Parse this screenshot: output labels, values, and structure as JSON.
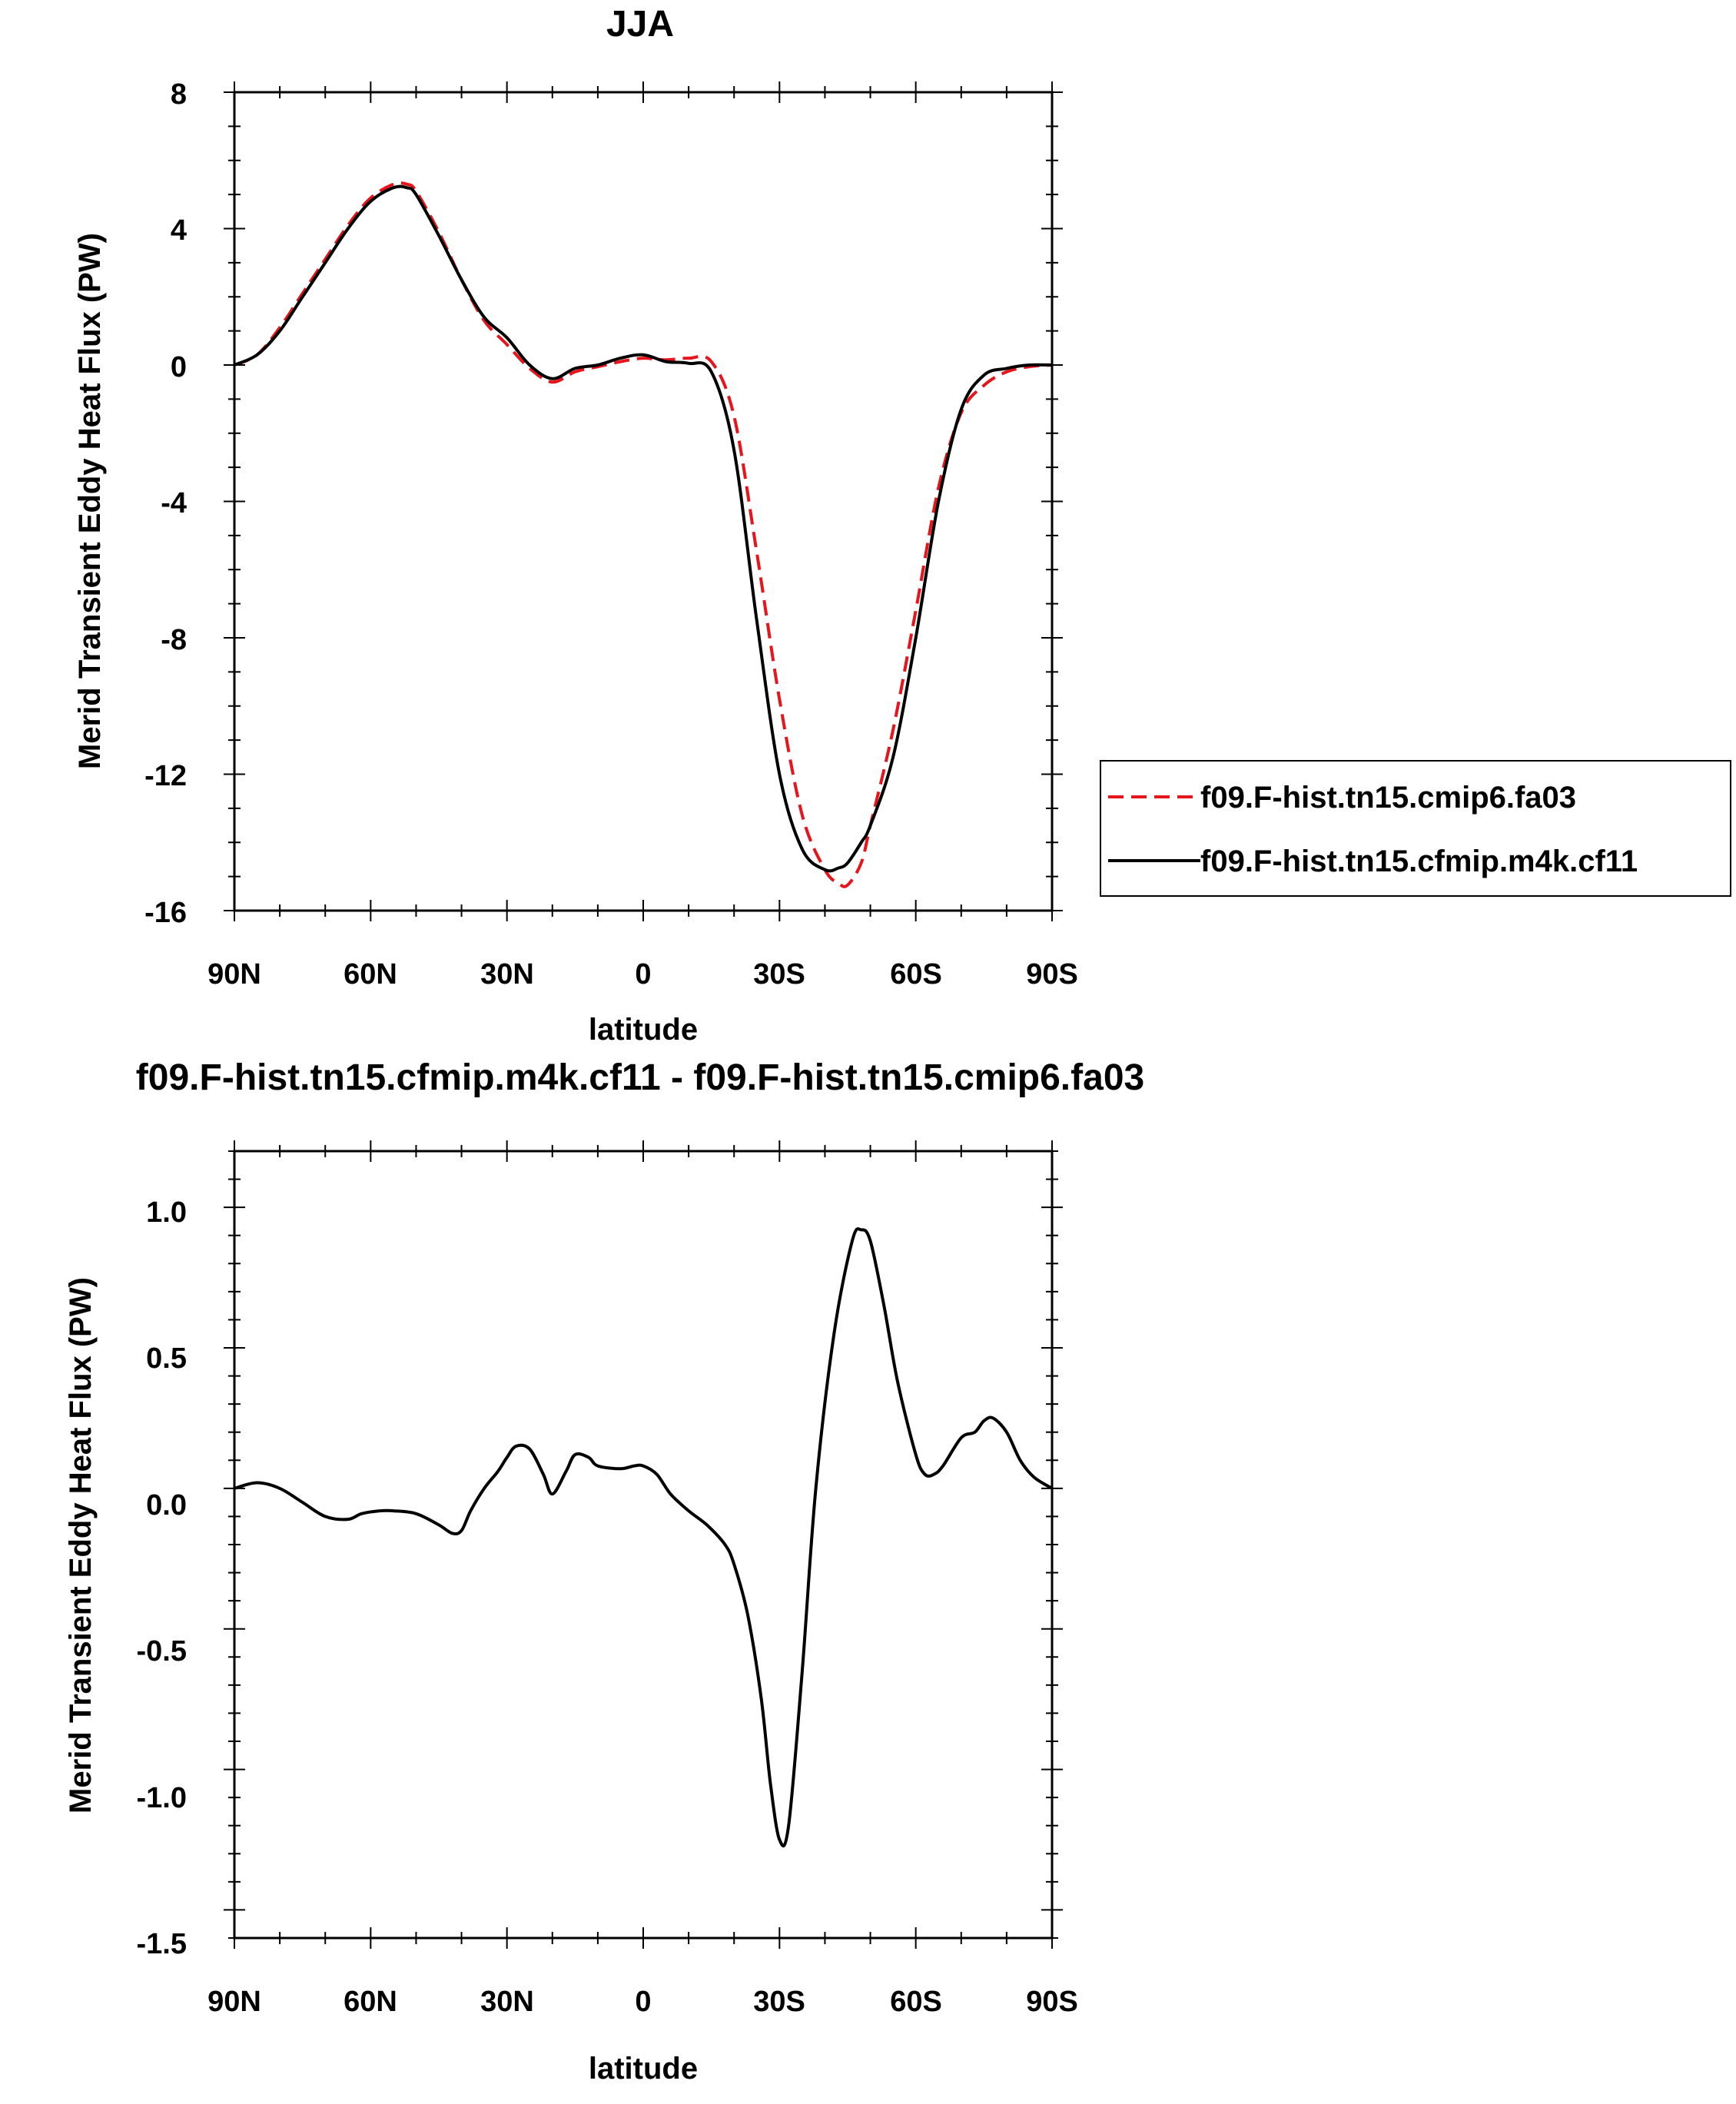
{
  "chart_data": [
    {
      "type": "line",
      "title": "JJA",
      "xlabel": "latitude",
      "ylabel": "Merid Transient Eddy Heat Flux (PW)",
      "xlim": [
        90,
        -90
      ],
      "ylim": [
        -16,
        8
      ],
      "xticks": [
        90,
        60,
        30,
        0,
        -30,
        -60,
        -90
      ],
      "xtick_labels": [
        "90N",
        "60N",
        "30N",
        "0",
        "30S",
        "60S",
        "90S"
      ],
      "yticks": [
        -16,
        -12,
        -8,
        -4,
        0,
        4,
        8
      ],
      "ytick_labels": [
        "-16",
        "-12",
        "-8",
        "-4",
        "0",
        "4",
        "8"
      ],
      "legend": {
        "position": "right"
      },
      "x": [
        90,
        85,
        80,
        75,
        70,
        65,
        60,
        55,
        52,
        50,
        45,
        40,
        35,
        30,
        25,
        20,
        15,
        10,
        5,
        0,
        -5,
        -10,
        -15,
        -20,
        -25,
        -30,
        -35,
        -40,
        -43,
        -45,
        -48,
        -50,
        -55,
        -60,
        -65,
        -70,
        -75,
        -80,
        -85,
        -90
      ],
      "series": [
        {
          "name": "f09.F-hist.tn15.cmip6.fa03",
          "color": "#e8141b",
          "dash": "dashed",
          "values": [
            0.0,
            0.3,
            1.1,
            2.1,
            3.1,
            4.1,
            4.9,
            5.3,
            5.3,
            5.1,
            3.9,
            2.5,
            1.3,
            0.6,
            -0.1,
            -0.5,
            -0.2,
            -0.05,
            0.1,
            0.2,
            0.15,
            0.2,
            0.1,
            -1.5,
            -5.5,
            -9.8,
            -13.2,
            -14.8,
            -15.2,
            -15.25,
            -14.6,
            -13.5,
            -10.7,
            -7.2,
            -3.6,
            -1.4,
            -0.6,
            -0.2,
            -0.05,
            0.0
          ]
        },
        {
          "name": "f09.F-hist.tn15.cfmip.m4k.cf11",
          "color": "#000000",
          "dash": "solid",
          "values": [
            0.0,
            0.3,
            1.0,
            2.0,
            3.0,
            4.0,
            4.8,
            5.2,
            5.2,
            5.0,
            3.8,
            2.5,
            1.4,
            0.8,
            0.0,
            -0.4,
            -0.1,
            0.0,
            0.2,
            0.3,
            0.1,
            0.05,
            -0.2,
            -2.5,
            -7.5,
            -12.0,
            -14.2,
            -14.8,
            -14.75,
            -14.6,
            -14.0,
            -13.5,
            -11.5,
            -8.0,
            -4.0,
            -1.3,
            -0.3,
            -0.1,
            0.0,
            0.0
          ]
        }
      ]
    },
    {
      "type": "line",
      "title": "f09.F-hist.tn15.cfmip.m4k.cf11 - f09.F-hist.tn15.cmip6.fa03",
      "xlabel": "latitude",
      "ylabel": "Merid Transient Eddy Heat Flux (PW)",
      "xlim": [
        90,
        -90
      ],
      "ylim": [
        -1.6,
        1.2
      ],
      "xticks": [
        90,
        60,
        30,
        0,
        -30,
        -60,
        -90
      ],
      "xtick_labels": [
        "90N",
        "60N",
        "30N",
        "0",
        "30S",
        "60S",
        "90S"
      ],
      "yticks": [
        -1.5,
        -1.0,
        -0.5,
        0.0,
        0.5,
        1.0
      ],
      "ytick_labels": [
        "-1.5",
        "-1.0",
        "-0.5",
        "0.0",
        "0.5",
        "1.0"
      ],
      "x": [
        90,
        85,
        80,
        75,
        70,
        65,
        62,
        58,
        55,
        50,
        45,
        42,
        40,
        38,
        35,
        32,
        30,
        28,
        25,
        22,
        20,
        17,
        15,
        12,
        10,
        5,
        2,
        0,
        -3,
        -6,
        -10,
        -14,
        -18,
        -20,
        -23,
        -26,
        -28,
        -30,
        -32,
        -35,
        -38,
        -42,
        -46,
        -48,
        -50,
        -53,
        -56,
        -60,
        -62,
        -64,
        -66,
        -70,
        -73,
        -75,
        -77,
        -80,
        -83,
        -86,
        -90
      ],
      "series": [
        {
          "name": "f09.F-hist.tn15.cfmip.m4k.cf11 - f09.F-hist.tn15.cmip6.fa03",
          "color": "#000000",
          "dash": "solid",
          "values": [
            0.0,
            0.02,
            0.0,
            -0.05,
            -0.1,
            -0.11,
            -0.09,
            -0.08,
            -0.08,
            -0.09,
            -0.13,
            -0.16,
            -0.15,
            -0.08,
            0.0,
            0.06,
            0.11,
            0.15,
            0.14,
            0.05,
            -0.02,
            0.06,
            0.12,
            0.11,
            0.08,
            0.07,
            0.08,
            0.08,
            0.05,
            -0.02,
            -0.08,
            -0.13,
            -0.2,
            -0.27,
            -0.45,
            -0.75,
            -1.05,
            -1.25,
            -1.2,
            -0.65,
            0.0,
            0.55,
            0.88,
            0.92,
            0.88,
            0.65,
            0.38,
            0.12,
            0.05,
            0.05,
            0.08,
            0.18,
            0.2,
            0.24,
            0.25,
            0.2,
            0.1,
            0.04,
            0.0
          ]
        }
      ]
    }
  ]
}
